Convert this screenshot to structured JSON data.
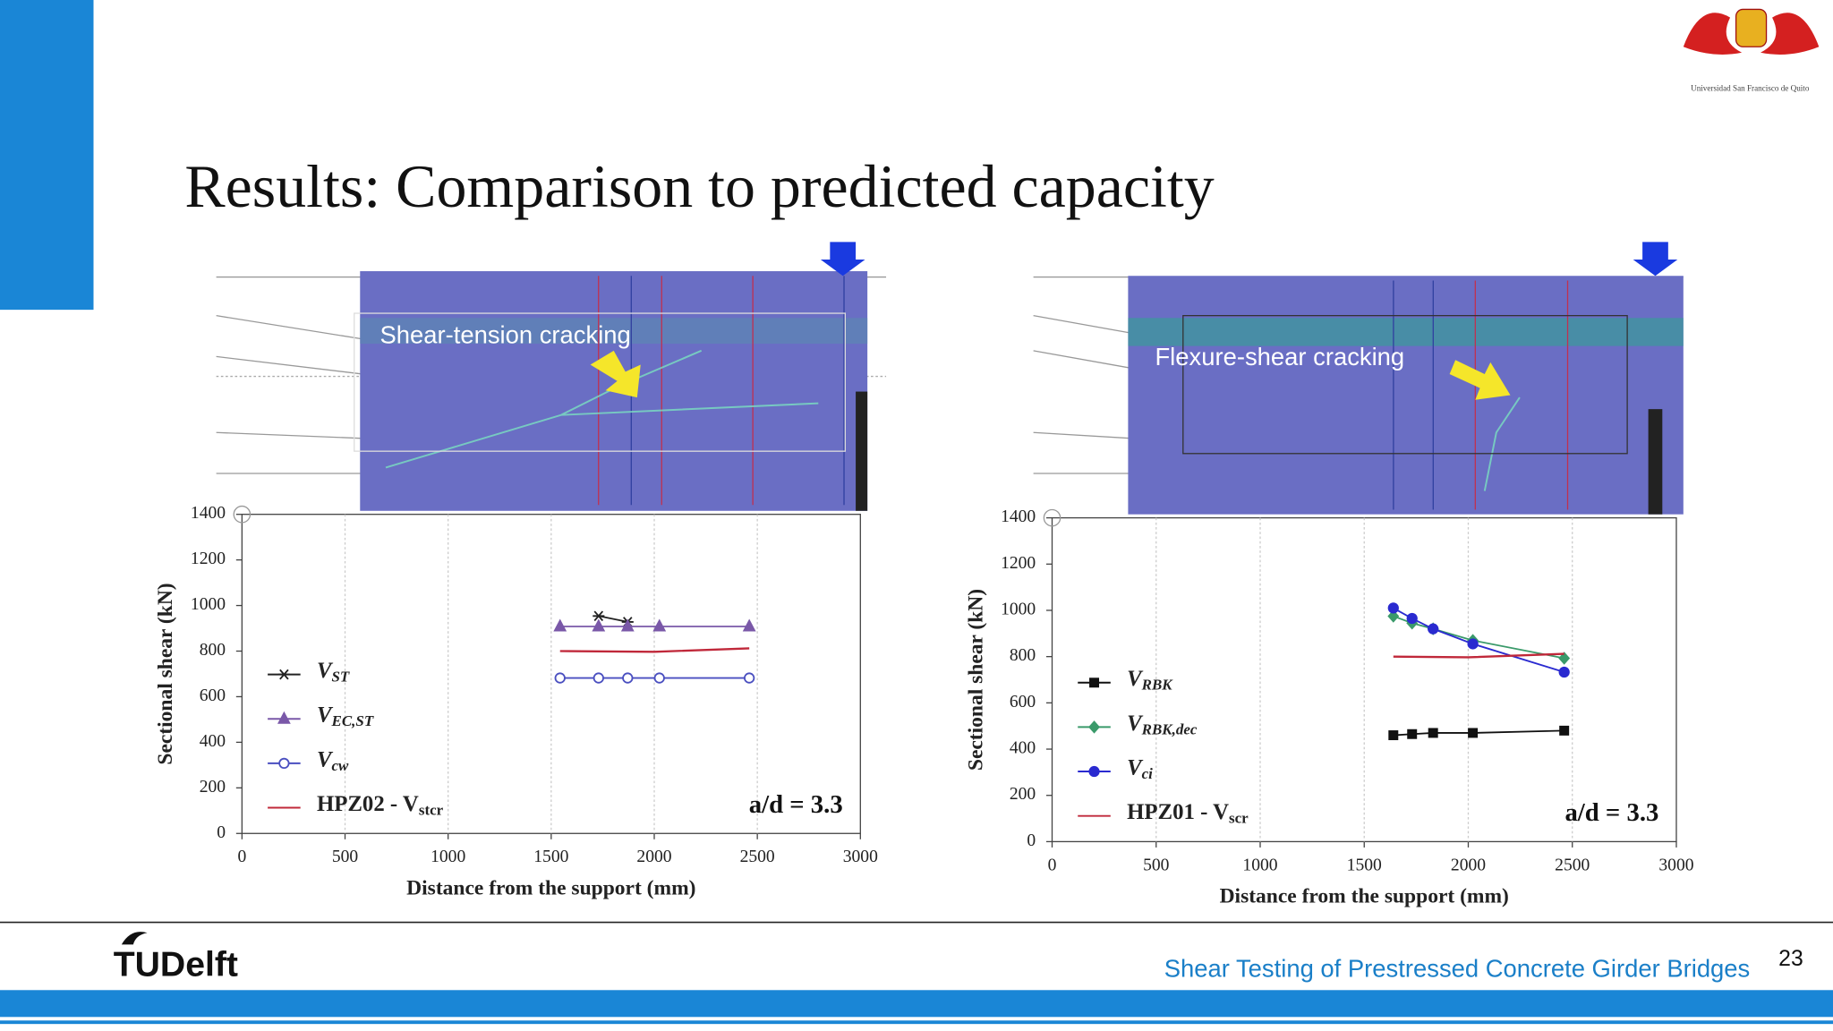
{
  "title": "Results: Comparison to predicted capacity",
  "logo_top": "Universidad San Francisco de Quito",
  "logo_bottom": "TUDelft",
  "footer": "Shear Testing of Prestressed Concrete Girder Bridges",
  "page_number": "23",
  "photo_labels": [
    "Shear-tension cracking",
    "Flexure-shear cracking"
  ],
  "chart_data": [
    {
      "type": "line",
      "xlabel": "Distance from the support (mm)",
      "ylabel": "Sectional shear (kN)",
      "annotation": "a/d = 3.3",
      "xlim": [
        0,
        3000
      ],
      "xticks": [
        0,
        500,
        1000,
        1500,
        2000,
        2500,
        3000
      ],
      "ylim": [
        0,
        1400
      ],
      "yticks": [
        0,
        200,
        400,
        600,
        800,
        1000,
        1200,
        1400
      ],
      "series": [
        {
          "name": "VST",
          "color": "#222222",
          "marker": "asterisk",
          "marker_fill": true,
          "x": [
            1730,
            1871
          ],
          "values": [
            954,
            928
          ]
        },
        {
          "name": "VEC,ST",
          "color": "#7a58a8",
          "marker": "triangle",
          "marker_fill": true,
          "x": [
            1543,
            1730,
            1871,
            2025,
            2461
          ],
          "values": [
            908,
            908,
            908,
            908,
            908
          ]
        },
        {
          "name": "Vcw",
          "color": "#4a4fc0",
          "marker": "circle",
          "marker_fill": false,
          "x": [
            1543,
            1730,
            1871,
            2025,
            2461
          ],
          "values": [
            682,
            682,
            682,
            682,
            682
          ]
        },
        {
          "name": "HPZ02 - Vstcr",
          "color": "#c0283a",
          "marker": "none",
          "marker_fill": false,
          "x": [
            1543,
            2000,
            2461
          ],
          "values": [
            800,
            797,
            812
          ]
        }
      ]
    },
    {
      "type": "line",
      "xlabel": "Distance from the support (mm)",
      "ylabel": "Sectional shear (kN)",
      "annotation": "a/d = 3.3",
      "xlim": [
        0,
        3000
      ],
      "xticks": [
        0,
        500,
        1000,
        1500,
        2000,
        2500,
        3000
      ],
      "ylim": [
        0,
        1400
      ],
      "yticks": [
        0,
        200,
        400,
        600,
        800,
        1000,
        1200,
        1400
      ],
      "series": [
        {
          "name": "VRBK",
          "color": "#111111",
          "marker": "square",
          "marker_fill": true,
          "x": [
            1640,
            1730,
            1831,
            2022,
            2461
          ],
          "values": [
            460,
            465,
            470,
            470,
            480
          ]
        },
        {
          "name": "VRBK,dec",
          "color": "#3a9a6a",
          "marker": "diamond",
          "marker_fill": true,
          "x": [
            1640,
            1730,
            1831,
            2022,
            2461
          ],
          "values": [
            975,
            945,
            920,
            870,
            793
          ]
        },
        {
          "name": "Vci",
          "color": "#2a2ad0",
          "marker": "circle",
          "marker_fill": true,
          "x": [
            1640,
            1730,
            1831,
            2022,
            2461
          ],
          "values": [
            1010,
            965,
            920,
            855,
            733
          ]
        },
        {
          "name": "HPZ01 - Vscr",
          "color": "#c0283a",
          "marker": "none",
          "marker_fill": false,
          "x": [
            1640,
            2000,
            2461
          ],
          "values": [
            800,
            797,
            812
          ]
        }
      ]
    }
  ]
}
